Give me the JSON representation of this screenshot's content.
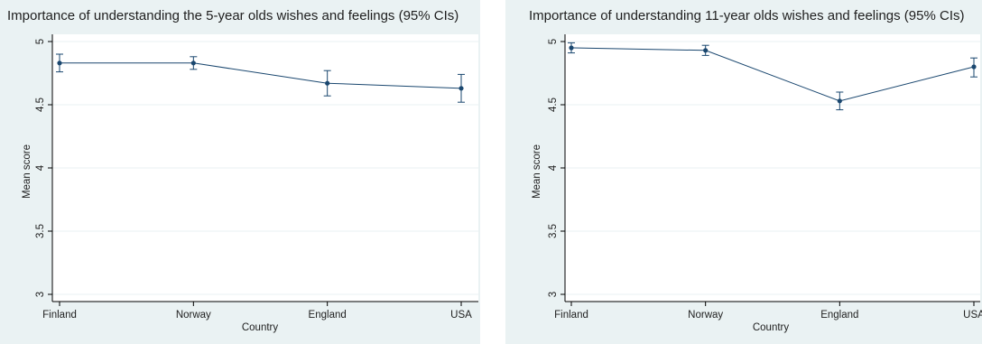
{
  "chart_data": [
    {
      "type": "line",
      "title": "Importance of understanding the 5-year olds wishes and feelings (95% CIs)",
      "xlabel": "Country",
      "ylabel": "Mean score",
      "categories": [
        "Finland",
        "Norway",
        "England",
        "USA"
      ],
      "series": [
        {
          "values": [
            4.83,
            4.83,
            4.67,
            4.63
          ],
          "ci_low": [
            4.76,
            4.78,
            4.57,
            4.52
          ],
          "ci_high": [
            4.9,
            4.88,
            4.77,
            4.74
          ]
        }
      ],
      "ylim": [
        3,
        5
      ],
      "yticks": [
        3,
        3.5,
        4,
        4.5,
        5
      ],
      "ytick_labels": [
        "3",
        "3.5",
        "4",
        "4.5",
        "5"
      ],
      "grid": true,
      "line_color": "#1a476f"
    },
    {
      "type": "line",
      "title": "Importance of understanding 11-year olds wishes and feelings (95% CIs)",
      "xlabel": "Country",
      "ylabel": "Mean score",
      "categories": [
        "Finland",
        "Norway",
        "England",
        "USA"
      ],
      "series": [
        {
          "values": [
            4.95,
            4.93,
            4.53,
            4.8
          ],
          "ci_low": [
            4.91,
            4.89,
            4.46,
            4.72
          ],
          "ci_high": [
            4.99,
            4.97,
            4.6,
            4.87
          ]
        }
      ],
      "ylim": [
        3,
        5
      ],
      "yticks": [
        3,
        3.5,
        4,
        4.5,
        5
      ],
      "ytick_labels": [
        "3",
        "3.5",
        "4",
        "4.5",
        "5"
      ],
      "grid": true,
      "line_color": "#1a476f"
    }
  ]
}
